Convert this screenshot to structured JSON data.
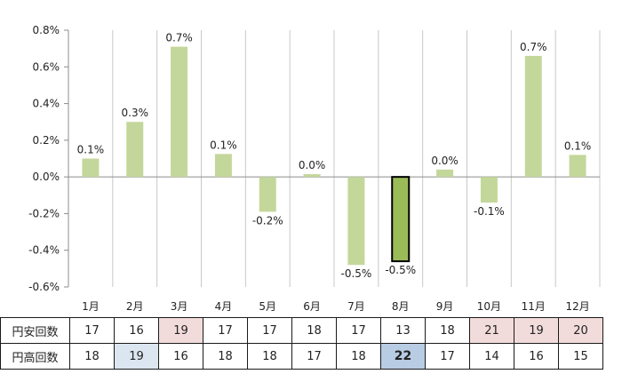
{
  "chart_data": {
    "type": "bar",
    "categories": [
      "1月",
      "2月",
      "3月",
      "4月",
      "5月",
      "6月",
      "7月",
      "8月",
      "9月",
      "10月",
      "11月",
      "12月"
    ],
    "values": [
      0.1,
      0.3,
      0.71,
      0.125,
      -0.19,
      0.015,
      -0.48,
      -0.46,
      0.04,
      -0.14,
      0.66,
      0.12
    ],
    "labels": [
      "0.1%",
      "0.3%",
      "0.7%",
      "0.1%",
      "-0.2%",
      "0.0%",
      "-0.5%",
      "-0.5%",
      "0.0%",
      "-0.1%",
      "0.7%",
      "0.1%"
    ],
    "ylim": [
      -0.6,
      0.8
    ],
    "yticks": [
      "0.8%",
      "0.6%",
      "0.4%",
      "0.2%",
      "0.0%",
      "-0.2%",
      "-0.4%",
      "-0.6%"
    ],
    "grid": "vertical",
    "bar_color": "#c4d79b",
    "highlight_index": 7,
    "highlight_color": "#9bbb59"
  },
  "table": {
    "rows": [
      {
        "label": "円安回数",
        "values": [
          "17",
          "16",
          "19",
          "17",
          "17",
          "18",
          "17",
          "13",
          "18",
          "21",
          "19",
          "20"
        ],
        "highlight": [
          "",
          "",
          "pink",
          "",
          "",
          "",
          "",
          "",
          "",
          "pink",
          "pink",
          "pink"
        ]
      },
      {
        "label": "円高回数",
        "values": [
          "18",
          "19",
          "16",
          "18",
          "18",
          "17",
          "18",
          "22",
          "17",
          "14",
          "16",
          "15"
        ],
        "highlight": [
          "",
          "blue",
          "",
          "",
          "",
          "",
          "",
          "strong",
          "",
          "",
          "",
          ""
        ]
      }
    ]
  }
}
